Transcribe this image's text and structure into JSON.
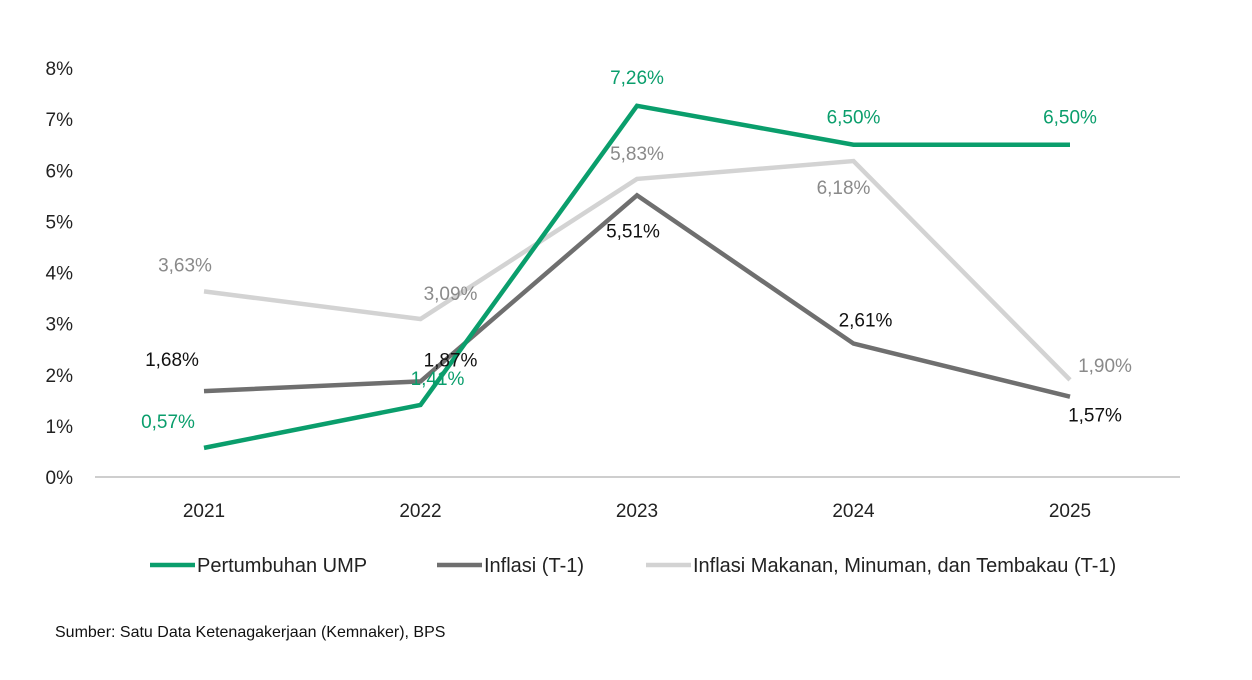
{
  "chart_data": {
    "type": "line",
    "categories": [
      "2021",
      "2022",
      "2023",
      "2024",
      "2025"
    ],
    "ylim": [
      0,
      8
    ],
    "yticks": [
      "0%",
      "1%",
      "2%",
      "3%",
      "4%",
      "5%",
      "6%",
      "7%",
      "8%"
    ],
    "series": [
      {
        "name": "Pertumbuhan UMP",
        "color": "#0a9e6c",
        "labelColor": "#0a9e6c",
        "values": [
          0.57,
          1.41,
          7.26,
          6.5,
          6.5
        ],
        "labels": [
          "0,57%",
          "1,41%",
          "7,26%",
          "6,50%",
          "6,50%"
        ]
      },
      {
        "name": "Inflasi (T-1)",
        "color": "#6f6f6f",
        "labelColor": "#111111",
        "values": [
          1.68,
          1.87,
          5.51,
          2.61,
          1.57
        ],
        "labels": [
          "1,68%",
          "1,87%",
          "5,51%",
          "2,61%",
          "1,57%"
        ]
      },
      {
        "name": "Inflasi Makanan, Minuman, dan Tembakau (T-1)",
        "color": "#d3d3d3",
        "labelColor": "#8a8a8a",
        "values": [
          3.63,
          3.09,
          5.83,
          6.18,
          1.9
        ],
        "labels": [
          "3,63%",
          "3,09%",
          "5,83%",
          "6,18%",
          "1,90%"
        ]
      }
    ]
  },
  "source": "Sumber: Satu Data Ketenagakerjaan (Kemnaker), BPS"
}
